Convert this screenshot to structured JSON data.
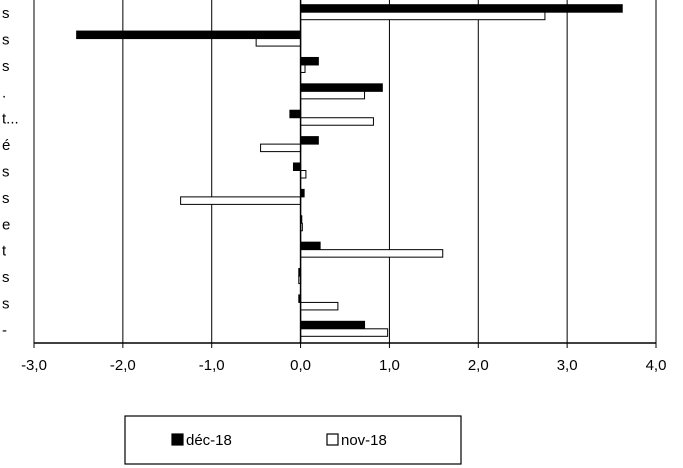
{
  "chart_data": {
    "type": "bar",
    "orientation": "horizontal",
    "categories": [
      "s",
      "s",
      "s",
      ".",
      "t...",
      "é",
      "s",
      "s",
      "e",
      "t",
      "s",
      "s",
      "-"
    ],
    "series": [
      {
        "name": "déc-18",
        "color": "#000000",
        "values": [
          3.62,
          -2.52,
          0.2,
          0.92,
          -0.12,
          0.2,
          -0.08,
          0.04,
          0.0,
          0.22,
          -0.02,
          -0.02,
          0.72
        ]
      },
      {
        "name": "nov-18",
        "color": "#ffffff",
        "values": [
          2.75,
          -0.5,
          0.05,
          0.72,
          0.82,
          -0.45,
          0.06,
          -1.35,
          0.02,
          1.6,
          -0.02,
          0.42,
          0.98
        ]
      }
    ],
    "xlim": [
      -3.0,
      4.0
    ],
    "xticks": [
      -3.0,
      -2.0,
      -1.0,
      0.0,
      1.0,
      2.0,
      3.0,
      4.0
    ],
    "xtick_labels": [
      "-3,0",
      "-2,0",
      "-1,0",
      "0,0",
      "1,0",
      "2,0",
      "3,0",
      "4,0"
    ],
    "grid": "vertical",
    "legend_position": "bottom"
  }
}
